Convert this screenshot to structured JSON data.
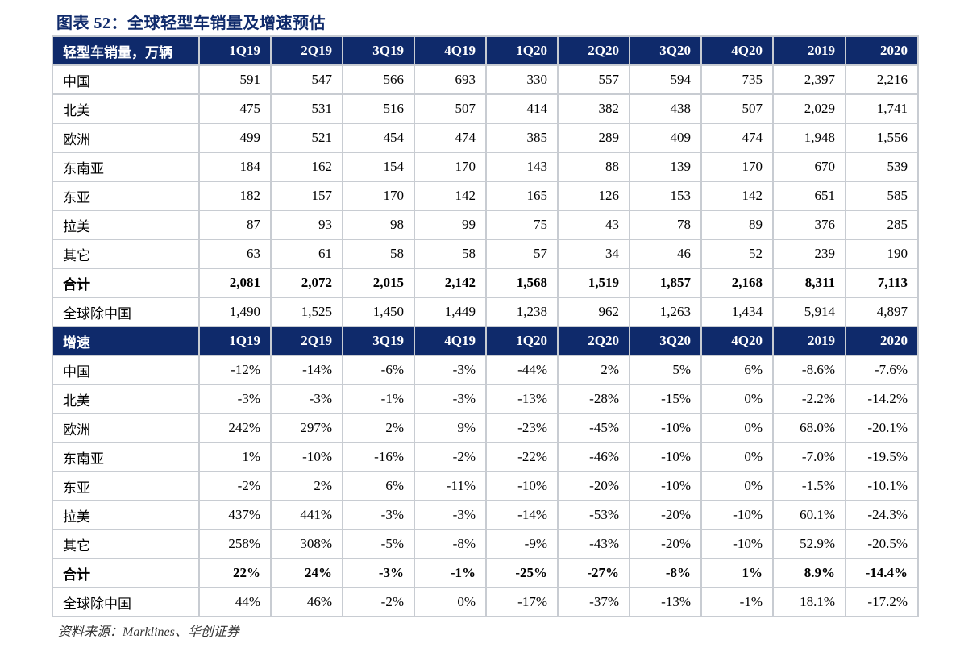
{
  "title": "图表 52：全球轻型车销量及增速预估",
  "sales": {
    "header_label": "轻型车销量，万辆",
    "columns": [
      "1Q19",
      "2Q19",
      "3Q19",
      "4Q19",
      "1Q20",
      "2Q20",
      "3Q20",
      "4Q20",
      "2019",
      "2020"
    ],
    "rows": [
      {
        "label": "中国",
        "values": [
          "591",
          "547",
          "566",
          "693",
          "330",
          "557",
          "594",
          "735",
          "2,397",
          "2,216"
        ]
      },
      {
        "label": "北美",
        "values": [
          "475",
          "531",
          "516",
          "507",
          "414",
          "382",
          "438",
          "507",
          "2,029",
          "1,741"
        ]
      },
      {
        "label": "欧洲",
        "values": [
          "499",
          "521",
          "454",
          "474",
          "385",
          "289",
          "409",
          "474",
          "1,948",
          "1,556"
        ]
      },
      {
        "label": "东南亚",
        "values": [
          "184",
          "162",
          "154",
          "170",
          "143",
          "88",
          "139",
          "170",
          "670",
          "539"
        ]
      },
      {
        "label": "东亚",
        "values": [
          "182",
          "157",
          "170",
          "142",
          "165",
          "126",
          "153",
          "142",
          "651",
          "585"
        ]
      },
      {
        "label": "拉美",
        "values": [
          "87",
          "93",
          "98",
          "99",
          "75",
          "43",
          "78",
          "89",
          "376",
          "285"
        ]
      },
      {
        "label": "其它",
        "values": [
          "63",
          "61",
          "58",
          "58",
          "57",
          "34",
          "46",
          "52",
          "239",
          "190"
        ]
      },
      {
        "label": "合计",
        "values": [
          "2,081",
          "2,072",
          "2,015",
          "2,142",
          "1,568",
          "1,519",
          "1,857",
          "2,168",
          "8,311",
          "7,113"
        ],
        "total": true
      },
      {
        "label": "全球除中国",
        "values": [
          "1,490",
          "1,525",
          "1,450",
          "1,449",
          "1,238",
          "962",
          "1,263",
          "1,434",
          "5,914",
          "4,897"
        ]
      }
    ]
  },
  "growth": {
    "header_label": "增速",
    "columns": [
      "1Q19",
      "2Q19",
      "3Q19",
      "4Q19",
      "1Q20",
      "2Q20",
      "3Q20",
      "4Q20",
      "2019",
      "2020"
    ],
    "rows": [
      {
        "label": "中国",
        "values": [
          "-12%",
          "-14%",
          "-6%",
          "-3%",
          "-44%",
          "2%",
          "5%",
          "6%",
          "-8.6%",
          "-7.6%"
        ]
      },
      {
        "label": "北美",
        "values": [
          "-3%",
          "-3%",
          "-1%",
          "-3%",
          "-13%",
          "-28%",
          "-15%",
          "0%",
          "-2.2%",
          "-14.2%"
        ]
      },
      {
        "label": "欧洲",
        "values": [
          "242%",
          "297%",
          "2%",
          "9%",
          "-23%",
          "-45%",
          "-10%",
          "0%",
          "68.0%",
          "-20.1%"
        ]
      },
      {
        "label": "东南亚",
        "values": [
          "1%",
          "-10%",
          "-16%",
          "-2%",
          "-22%",
          "-46%",
          "-10%",
          "0%",
          "-7.0%",
          "-19.5%"
        ]
      },
      {
        "label": "东亚",
        "values": [
          "-2%",
          "2%",
          "6%",
          "-11%",
          "-10%",
          "-20%",
          "-10%",
          "0%",
          "-1.5%",
          "-10.1%"
        ]
      },
      {
        "label": "拉美",
        "values": [
          "437%",
          "441%",
          "-3%",
          "-3%",
          "-14%",
          "-53%",
          "-20%",
          "-10%",
          "60.1%",
          "-24.3%"
        ]
      },
      {
        "label": "其它",
        "values": [
          "258%",
          "308%",
          "-5%",
          "-8%",
          "-9%",
          "-43%",
          "-20%",
          "-10%",
          "52.9%",
          "-20.5%"
        ]
      },
      {
        "label": "合计",
        "values": [
          "22%",
          "24%",
          "-3%",
          "-1%",
          "-25%",
          "-27%",
          "-8%",
          "1%",
          "8.9%",
          "-14.4%"
        ],
        "total": true
      },
      {
        "label": "全球除中国",
        "values": [
          "44%",
          "46%",
          "-2%",
          "0%",
          "-17%",
          "-37%",
          "-13%",
          "-1%",
          "18.1%",
          "-17.2%"
        ]
      }
    ]
  },
  "source": "资料来源：Marklines、华创证券"
}
